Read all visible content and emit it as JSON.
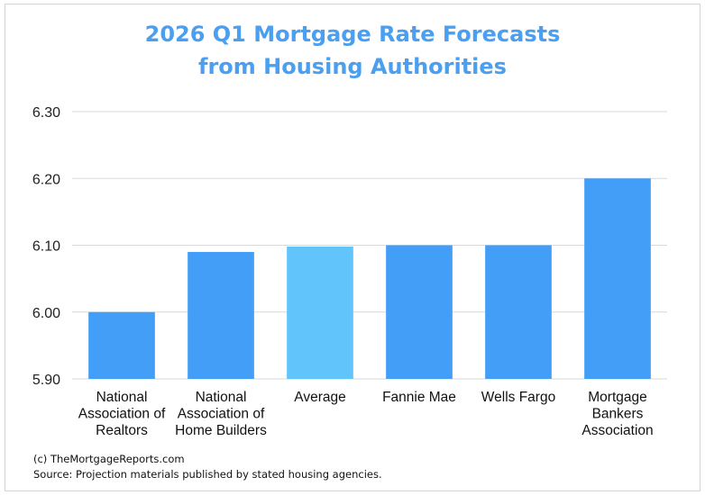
{
  "chart_data": {
    "type": "bar",
    "title": [
      "2026 Q1 Mortgage Rate Forecasts",
      "from Housing Authorities"
    ],
    "xlabel": "",
    "ylabel": "",
    "categories": [
      [
        "National",
        "Association of",
        "Realtors"
      ],
      [
        "National",
        "Association of",
        "Home Builders"
      ],
      [
        "Average"
      ],
      [
        "Fannie Mae"
      ],
      [
        "Wells Fargo"
      ],
      [
        "Mortgage",
        "Bankers",
        "Association"
      ]
    ],
    "values": [
      6.0,
      6.09,
      6.098,
      6.1,
      6.1,
      6.2
    ],
    "highlight": [
      false,
      false,
      true,
      false,
      false,
      false
    ],
    "ylim": [
      5.9,
      6.3
    ],
    "yticks": [
      "5.90",
      "6.00",
      "6.10",
      "6.20",
      "6.30"
    ],
    "ytick_values": [
      5.9,
      6.0,
      6.1,
      6.2,
      6.3
    ],
    "grid": true,
    "legend": "none",
    "colors": {
      "bar": "#439ef7",
      "highlight": "#61c5fc",
      "grid": "#d9d9d9",
      "title": "#4a9ff0"
    }
  },
  "footer": {
    "copyright": "(c) TheMortgageReports.com",
    "source": "Source: Projection materials published by stated housing agencies."
  }
}
